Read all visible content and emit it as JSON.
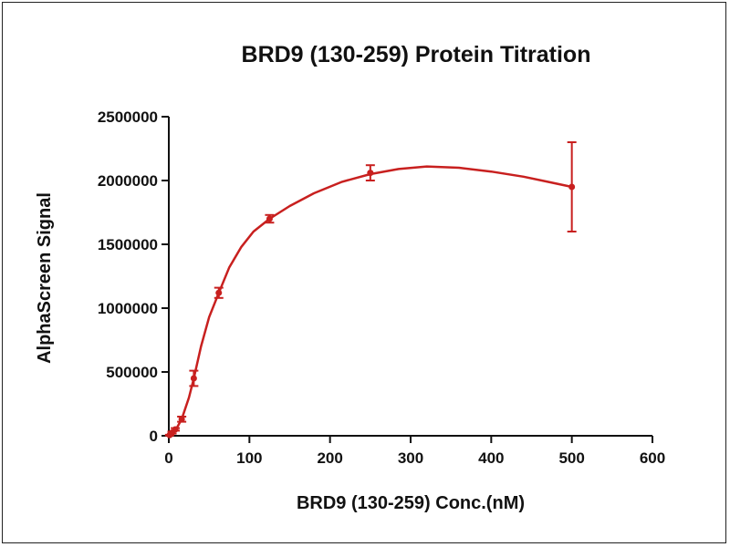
{
  "chart_data": {
    "type": "scatter",
    "title": "BRD9 (130-259) Protein Titration",
    "xlabel": "BRD9 (130-259) Conc.(nM)",
    "ylabel": "AlphaScreen Signal",
    "xlim": [
      0,
      600
    ],
    "ylim": [
      0,
      2500000
    ],
    "x_ticks": [
      0,
      100,
      200,
      300,
      400,
      500,
      600
    ],
    "x_tick_labels": [
      "0",
      "100",
      "200",
      "300",
      "400",
      "500",
      "600"
    ],
    "y_ticks": [
      0,
      500000,
      1000000,
      1500000,
      2000000,
      2500000
    ],
    "y_tick_labels": [
      "0",
      "500000",
      "1000000",
      "1500000",
      "2000000",
      "2500000"
    ],
    "grid": false,
    "series": [
      {
        "color": "#c8201f",
        "x": [
          1,
          4,
          8,
          16,
          31,
          62,
          125,
          250,
          500
        ],
        "y": [
          5000,
          25000,
          50000,
          130000,
          450000,
          1120000,
          1700000,
          2060000,
          1950000
        ],
        "error": [
          3000,
          8000,
          10000,
          20000,
          60000,
          40000,
          30000,
          60000,
          350000
        ]
      }
    ],
    "fit_curve": {
      "color": "#c8201f",
      "x": [
        0,
        8,
        16,
        25,
        31,
        40,
        50,
        62,
        75,
        90,
        105,
        125,
        150,
        180,
        215,
        250,
        285,
        320,
        360,
        400,
        440,
        470,
        500
      ],
      "y": [
        0,
        40000,
        130000,
        300000,
        450000,
        700000,
        930000,
        1120000,
        1320000,
        1480000,
        1600000,
        1700000,
        1800000,
        1900000,
        1990000,
        2050000,
        2090000,
        2110000,
        2100000,
        2070000,
        2030000,
        1990000,
        1950000
      ]
    }
  }
}
